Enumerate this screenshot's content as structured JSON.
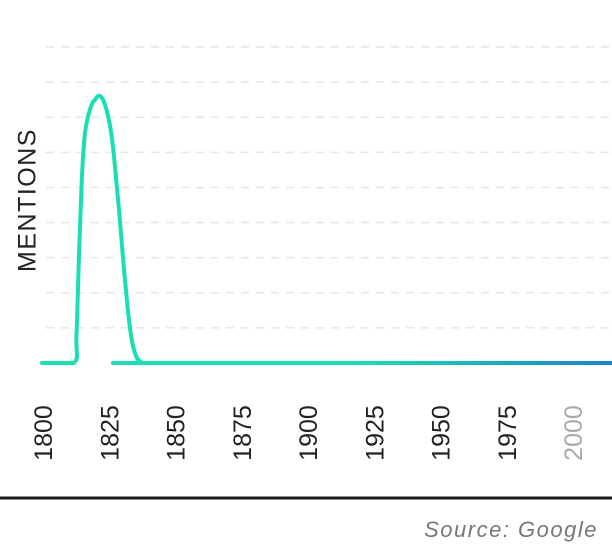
{
  "chart_data": {
    "type": "line",
    "ylabel": "MENTIONS",
    "xlabel": "",
    "x_ticks": [
      "1800",
      "1825",
      "1850",
      "1875",
      "1900",
      "1925",
      "1950",
      "1975",
      "2000"
    ],
    "x_ticks_muted": [
      "2000"
    ],
    "xlim": [
      1800,
      2015
    ],
    "ylim": [
      0,
      9
    ],
    "grid": true,
    "gridline_count": 9,
    "x": [
      1800,
      1812,
      1813,
      1814,
      1815,
      1816,
      1817,
      1818,
      1819,
      1820,
      1821,
      1822,
      1823,
      1824,
      1825,
      1826,
      1827,
      1828,
      1829,
      1830,
      1831,
      1832,
      1833,
      1834,
      1835,
      1836,
      1837,
      1838,
      1839,
      1840,
      2015
    ],
    "values": [
      0,
      0,
      0.8,
      3.2,
      5.2,
      6.4,
      6.9,
      7.2,
      7.4,
      7.5,
      7.6,
      7.6,
      7.5,
      7.3,
      7.0,
      6.6,
      6.0,
      5.2,
      4.4,
      3.5,
      2.6,
      1.8,
      1.1,
      0.6,
      0.3,
      0.12,
      0.05,
      0,
      0,
      0,
      0
    ],
    "line_gradient": [
      "#19e0b4",
      "#1985c8"
    ]
  },
  "source": "Source: Google"
}
